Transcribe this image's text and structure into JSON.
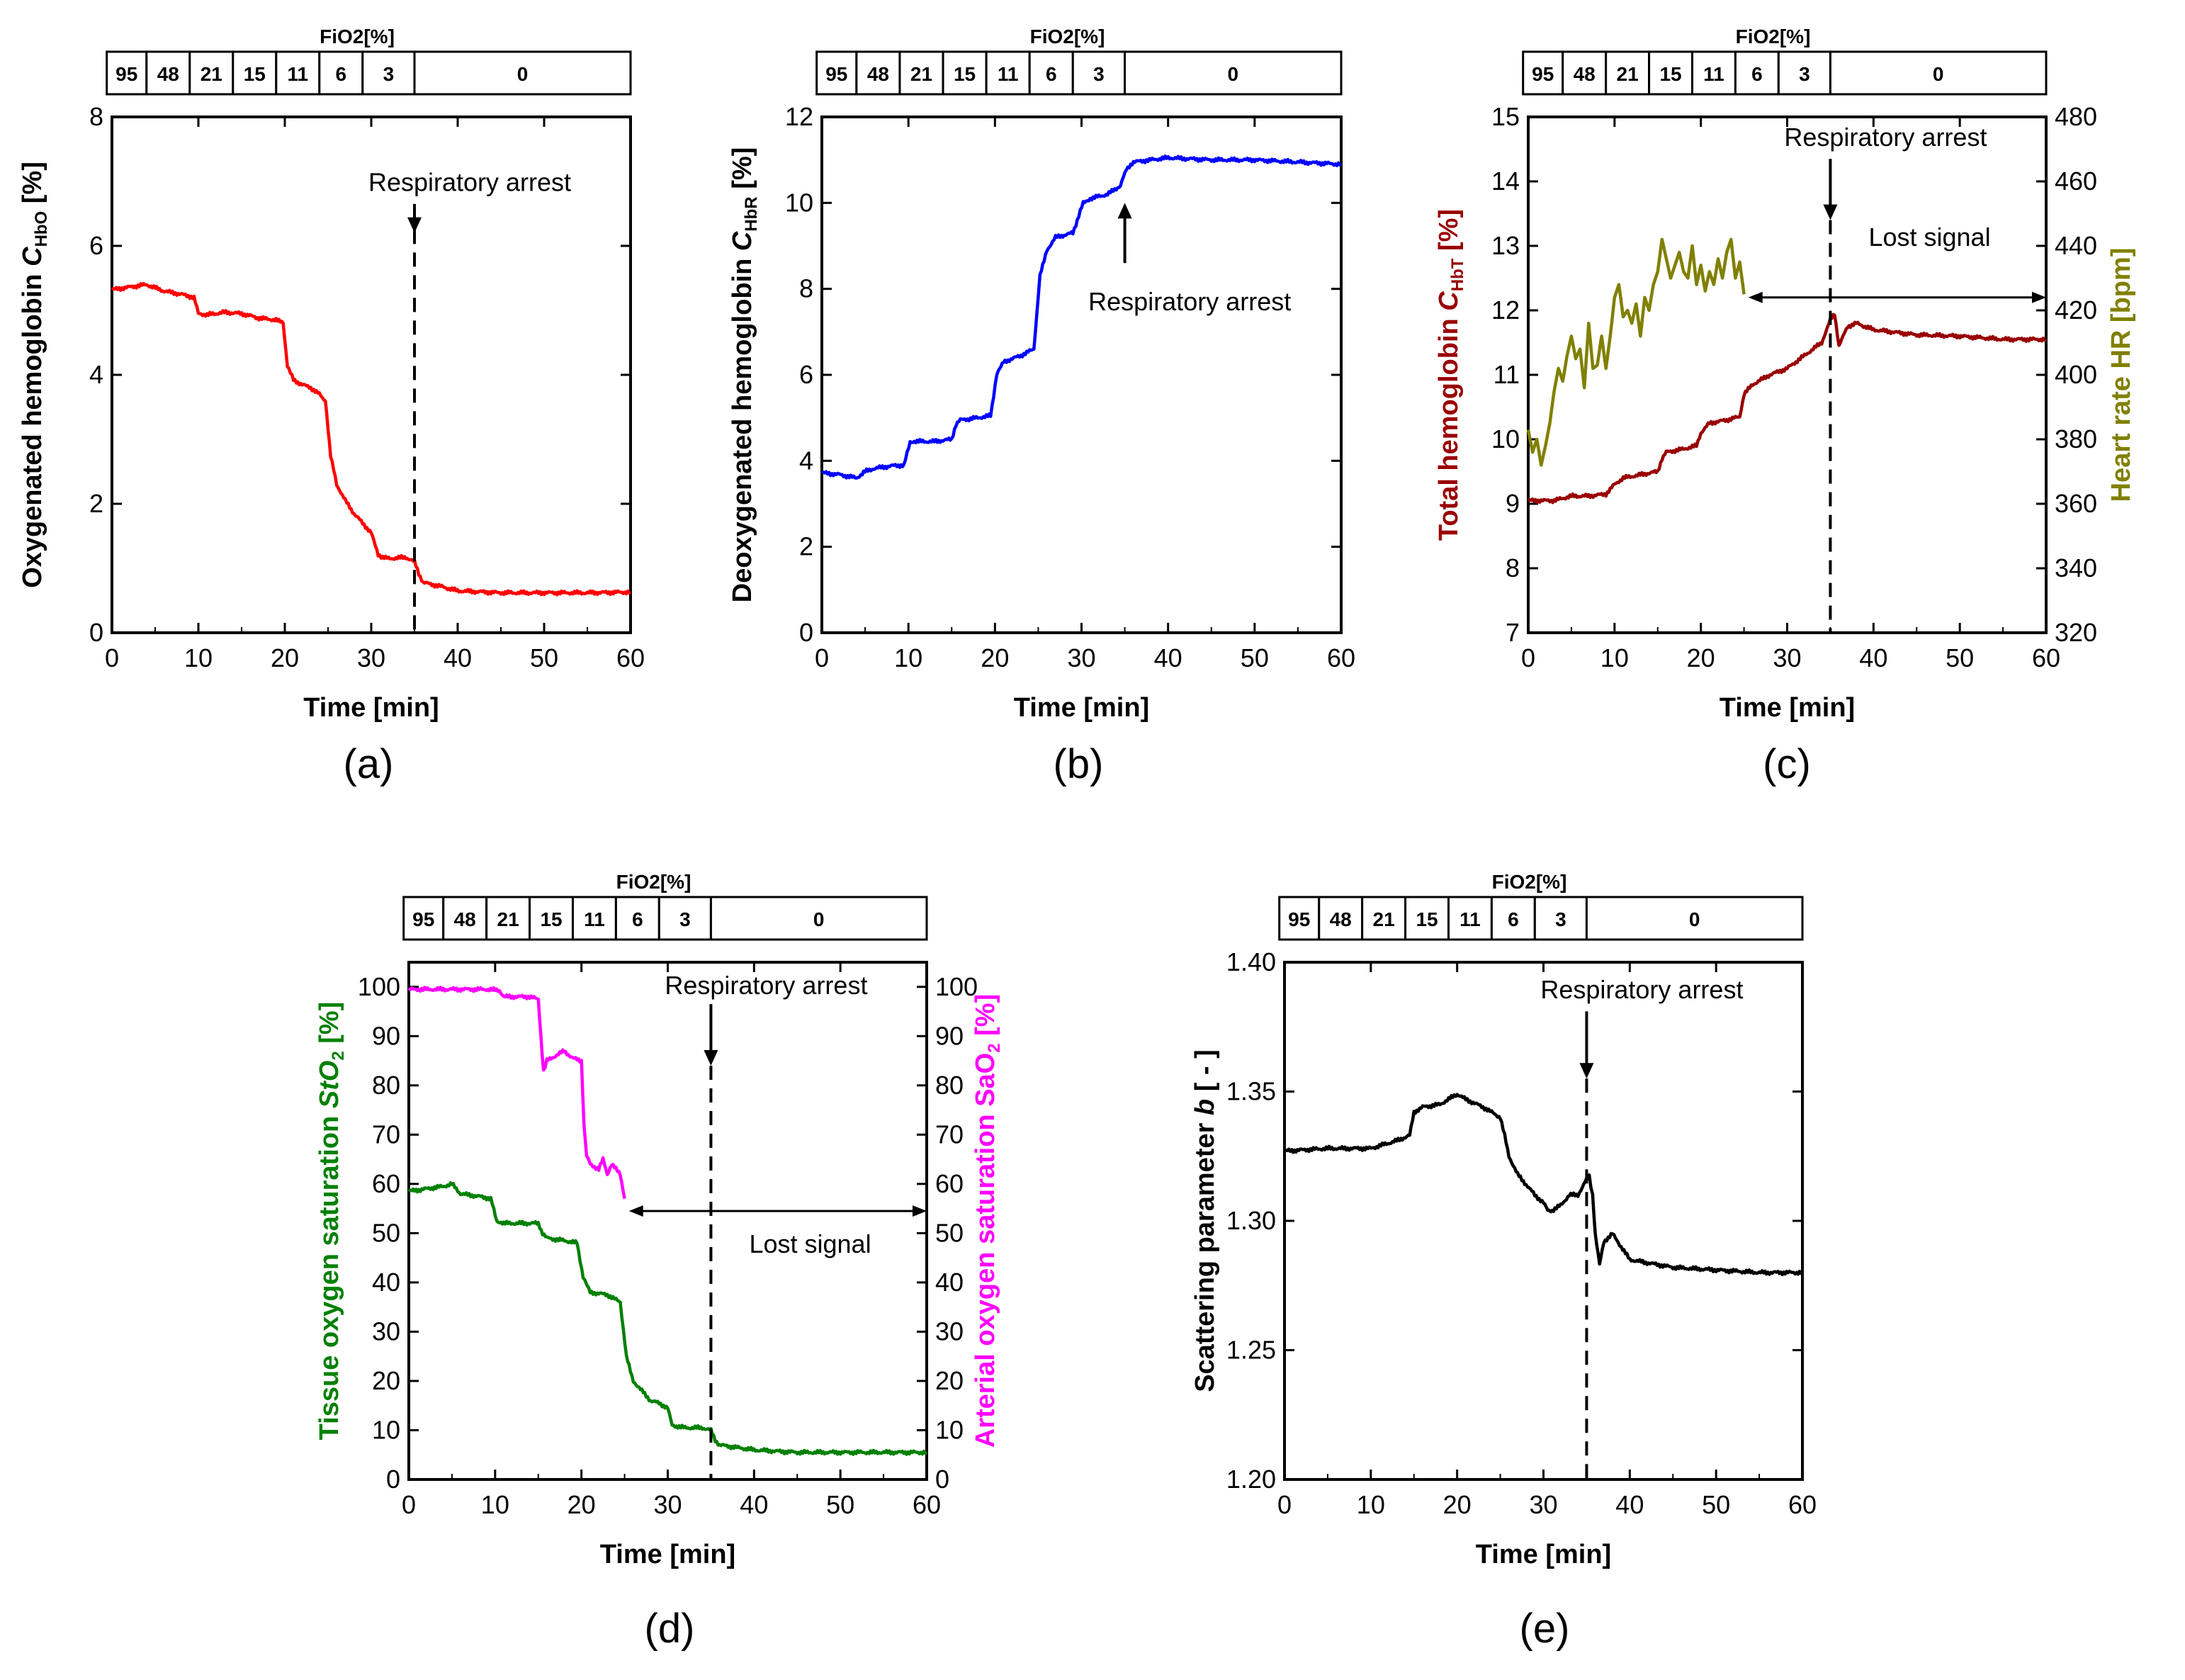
{
  "fio2": {
    "title": "FiO2[%]",
    "levels": [
      "95",
      "48",
      "21",
      "15",
      "11",
      "6",
      "3",
      "0"
    ]
  },
  "annotations": {
    "respiratory_arrest": "Respiratory arrest",
    "lost_signal": "Lost signal"
  },
  "chart_data": [
    {
      "id": "a",
      "panel_label": "(a)",
      "type": "line",
      "xlabel": "Time [min]",
      "ylabel": "Oxygenated hemoglobin C_HbO [%]",
      "xlim": [
        0,
        60
      ],
      "ylim": [
        0,
        8
      ],
      "xticks": [
        0,
        10,
        20,
        30,
        40,
        50,
        60
      ],
      "yticks": [
        0,
        2,
        4,
        6,
        8
      ],
      "arrest_min": 35,
      "series": [
        {
          "color": "#ff0000",
          "x": [
            0,
            2,
            4,
            6,
            8,
            9.5,
            10,
            11,
            13,
            15,
            17,
            19,
            19.8,
            20.3,
            21,
            22,
            23,
            24,
            24.7,
            25.3,
            26,
            27,
            28,
            29,
            30,
            30.8,
            32,
            34,
            35,
            35.5,
            36,
            38,
            40,
            45,
            50,
            55,
            60
          ],
          "y": [
            5.32,
            5.36,
            5.4,
            5.3,
            5.25,
            5.2,
            4.95,
            4.93,
            4.97,
            4.95,
            4.88,
            4.85,
            4.8,
            4.15,
            3.92,
            3.85,
            3.8,
            3.7,
            3.6,
            2.75,
            2.3,
            2.05,
            1.85,
            1.7,
            1.55,
            1.2,
            1.15,
            1.17,
            1.1,
            0.92,
            0.78,
            0.72,
            0.65,
            0.62,
            0.62,
            0.62,
            0.63
          ]
        }
      ]
    },
    {
      "id": "b",
      "panel_label": "(b)",
      "type": "line",
      "xlabel": "Time [min]",
      "ylabel": "Deoxygenated hemoglobin C_HbR [%]",
      "xlim": [
        0,
        60
      ],
      "ylim": [
        0,
        12
      ],
      "xticks": [
        0,
        10,
        20,
        30,
        40,
        50,
        60
      ],
      "yticks": [
        0,
        2,
        4,
        6,
        8,
        10,
        12
      ],
      "arrest_min": 35,
      "series": [
        {
          "color": "#0000ff",
          "x": [
            0,
            2,
            4,
            5,
            6,
            8,
            9.5,
            10.2,
            11,
            13,
            15,
            15.5,
            16,
            18,
            19.5,
            20.2,
            21,
            23,
            24.5,
            25.2,
            26,
            27,
            29,
            30.2,
            31,
            33,
            34.5,
            35.2,
            36,
            38,
            40,
            45,
            50,
            55,
            60
          ],
          "y": [
            3.72,
            3.68,
            3.6,
            3.75,
            3.82,
            3.88,
            3.9,
            4.45,
            4.45,
            4.45,
            4.5,
            4.85,
            4.95,
            5.0,
            5.05,
            6.0,
            6.3,
            6.45,
            6.6,
            8.3,
            8.9,
            9.2,
            9.3,
            10.0,
            10.1,
            10.2,
            10.4,
            10.8,
            10.95,
            11.0,
            11.05,
            11.0,
            11.0,
            10.95,
            10.9
          ]
        }
      ]
    },
    {
      "id": "c",
      "panel_label": "(c)",
      "type": "line",
      "xlabel": "Time [min]",
      "ylabel": "Total hemoglobin C_HbT [%]",
      "y2label": "Heart rate HR [bpm]",
      "xlim": [
        0,
        60
      ],
      "ylim": [
        7,
        15
      ],
      "y2lim": [
        320,
        480
      ],
      "xticks": [
        0,
        10,
        20,
        30,
        40,
        50,
        60
      ],
      "yticks": [
        7,
        8,
        9,
        10,
        11,
        12,
        13,
        14,
        15
      ],
      "y2ticks": [
        320,
        340,
        360,
        380,
        400,
        420,
        440,
        460,
        480
      ],
      "arrest_min": 35,
      "series": [
        {
          "axis": "left",
          "color": "#990000",
          "x": [
            0,
            3,
            5,
            7,
            9,
            10,
            11,
            13,
            15,
            15.5,
            16,
            18,
            19.5,
            20,
            21,
            23,
            24.5,
            25,
            26,
            28,
            30,
            32,
            34,
            35,
            35.5,
            36,
            37,
            38,
            40,
            45,
            50,
            55,
            60
          ],
          "y": [
            9.05,
            9.05,
            9.12,
            9.12,
            9.15,
            9.3,
            9.4,
            9.45,
            9.5,
            9.7,
            9.8,
            9.85,
            9.9,
            10.1,
            10.25,
            10.3,
            10.35,
            10.7,
            10.85,
            11.0,
            11.1,
            11.3,
            11.5,
            11.85,
            11.95,
            11.45,
            11.75,
            11.8,
            11.7,
            11.62,
            11.6,
            11.55,
            11.55
          ]
        },
        {
          "axis": "right",
          "color": "#808000",
          "x": [
            0,
            0.5,
            1,
            1.5,
            2,
            2.5,
            3,
            3.5,
            4,
            4.5,
            5,
            5.5,
            6,
            6.5,
            7,
            7.5,
            8,
            8.5,
            9,
            9.5,
            10,
            10.5,
            11,
            11.5,
            12,
            12.5,
            13,
            13.5,
            14,
            14.5,
            15,
            15.5,
            16,
            16.5,
            17,
            17.5,
            18,
            18.5,
            19,
            19.5,
            20,
            20.5,
            21,
            21.5,
            22,
            22.5,
            23,
            23.5,
            24,
            24.5,
            25
          ],
          "y": [
            383,
            376,
            380,
            372,
            378,
            385,
            395,
            402,
            398,
            406,
            412,
            405,
            408,
            396,
            416,
            402,
            403,
            412,
            402,
            412,
            424,
            428,
            418,
            420,
            416,
            422,
            412,
            424,
            420,
            428,
            432,
            442,
            436,
            430,
            434,
            438,
            432,
            430,
            440,
            428,
            434,
            426,
            432,
            428,
            436,
            430,
            438,
            442,
            430,
            435,
            425
          ]
        }
      ]
    },
    {
      "id": "d",
      "panel_label": "(d)",
      "type": "line",
      "xlabel": "Time [min]",
      "ylabel": "Tissue oxygen saturation StO2 [%]",
      "y2label": "Arterial oxygen saturation SaO2 [%]",
      "xlim": [
        0,
        60
      ],
      "ylim": [
        0,
        105
      ],
      "y2lim": [
        0,
        105
      ],
      "xticks": [
        0,
        10,
        20,
        30,
        40,
        50,
        60
      ],
      "yticks": [
        0,
        10,
        20,
        30,
        40,
        50,
        60,
        70,
        80,
        90,
        100
      ],
      "y2ticks": [
        0,
        10,
        20,
        30,
        40,
        50,
        60,
        70,
        80,
        90,
        100
      ],
      "arrest_min": 35,
      "series": [
        {
          "axis": "left",
          "color": "#008000",
          "x": [
            0,
            2,
            4,
            5,
            6,
            8,
            9.5,
            10.2,
            11,
            13,
            15,
            15.5,
            16,
            18,
            19.5,
            20.2,
            21,
            23,
            24.5,
            25.2,
            26,
            27,
            28,
            29,
            30,
            30.5,
            32,
            34,
            35,
            35.5,
            36,
            38,
            40,
            45,
            50,
            55,
            60
          ],
          "y": [
            58.5,
            59,
            59.5,
            60,
            58,
            57.5,
            57,
            52.5,
            52,
            52,
            52,
            50,
            49,
            48.5,
            48,
            41,
            38,
            37.5,
            36,
            25,
            20,
            18,
            16,
            15.5,
            14.5,
            11,
            10.5,
            10.5,
            10,
            8,
            7,
            6.5,
            6,
            5.5,
            5.5,
            5.5,
            5.5
          ]
        },
        {
          "axis": "right",
          "color": "#ff00ff",
          "x": [
            0,
            3,
            6,
            9,
            10.5,
            11,
            12,
            14,
            15,
            15.3,
            15.6,
            16,
            17,
            18,
            19,
            20,
            20.3,
            20.6,
            21,
            22,
            22.5,
            23,
            23.5,
            24,
            24.5,
            25
          ],
          "y": [
            99.5,
            99.5,
            99.5,
            99.5,
            99.3,
            98,
            98,
            98,
            97.5,
            90,
            83,
            85,
            86,
            87,
            85.5,
            85,
            72,
            66,
            64,
            63,
            65,
            62,
            64,
            63,
            62,
            57
          ]
        }
      ]
    },
    {
      "id": "e",
      "panel_label": "(e)",
      "type": "line",
      "xlabel": "Time [min]",
      "ylabel": "Scattering parameter b [ - ]",
      "xlim": [
        0,
        60
      ],
      "ylim": [
        1.2,
        1.4
      ],
      "xticks": [
        0,
        10,
        20,
        30,
        40,
        50,
        60
      ],
      "yticks": [
        1.2,
        1.25,
        1.3,
        1.35,
        1.4
      ],
      "arrest_min": 35,
      "series": [
        {
          "color": "#000000",
          "x": [
            0,
            5,
            10,
            13,
            14.5,
            15,
            16,
            18,
            20,
            21,
            23,
            25,
            25.5,
            26,
            27,
            28,
            29,
            30,
            30.5,
            31,
            32,
            33,
            34,
            35,
            35.3,
            35.7,
            36,
            36.5,
            37,
            38,
            39,
            40,
            45,
            50,
            55,
            60
          ],
          "y": [
            1.327,
            1.328,
            1.328,
            1.331,
            1.333,
            1.342,
            1.344,
            1.345,
            1.349,
            1.347,
            1.344,
            1.34,
            1.333,
            1.325,
            1.318,
            1.314,
            1.31,
            1.307,
            1.304,
            1.304,
            1.306,
            1.31,
            1.31,
            1.316,
            1.317,
            1.31,
            1.295,
            1.283,
            1.292,
            1.295,
            1.29,
            1.285,
            1.282,
            1.281,
            1.28,
            1.28
          ]
        }
      ]
    }
  ]
}
